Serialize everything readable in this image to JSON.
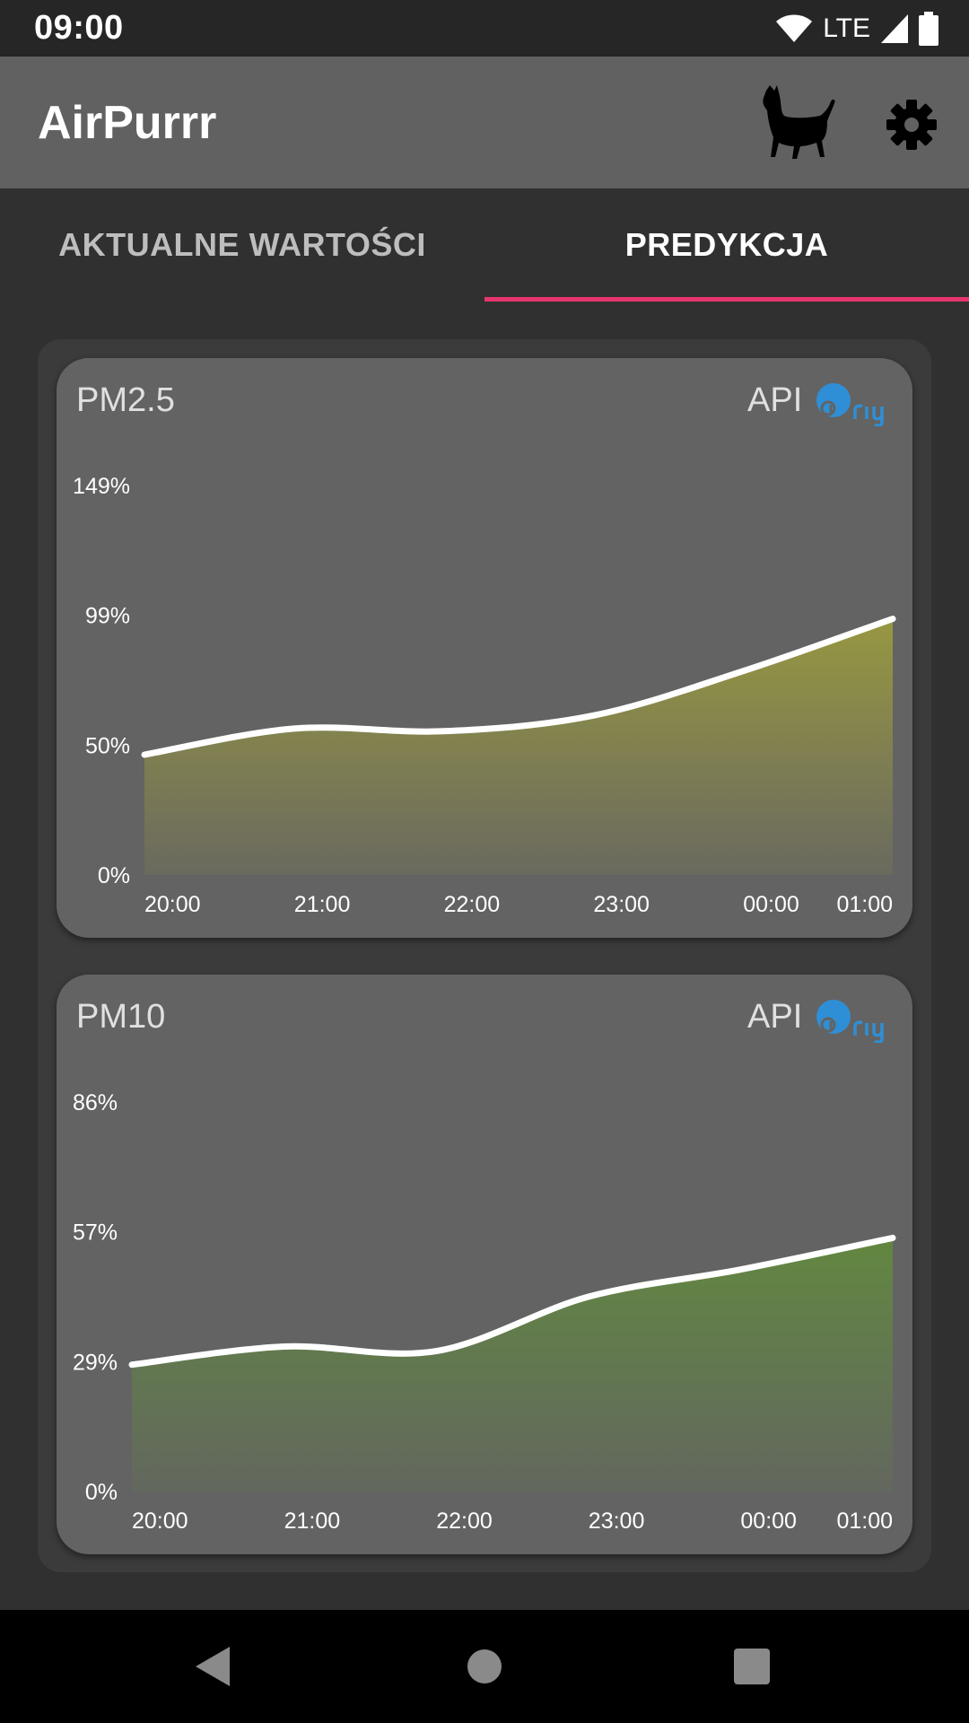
{
  "status_bar": {
    "time": "09:00",
    "network": "LTE",
    "icons": [
      "wifi-icon",
      "cell-signal-icon",
      "battery-icon"
    ]
  },
  "app_bar": {
    "title": "AirPurrr",
    "actions": [
      "cat-icon",
      "gear-icon"
    ]
  },
  "tabs": [
    {
      "label": "AKTUALNE WARTOŚCI",
      "active": false
    },
    {
      "label": "PREDYKCJA",
      "active": true
    }
  ],
  "colors": {
    "accent": "#e8356d",
    "pm25_fill": "#9a9a40",
    "pm10_fill": "#62893f",
    "airly_blue": "#2f8fd6"
  },
  "cards": [
    {
      "title": "PM2.5",
      "source_label": "API",
      "source_logo_text": "airly"
    },
    {
      "title": "PM10",
      "source_label": "API",
      "source_logo_text": "airly"
    }
  ],
  "chart_data": [
    {
      "type": "area",
      "title": "PM2.5",
      "x": [
        "20:00",
        "21:00",
        "22:00",
        "23:00",
        "00:00",
        "01:00"
      ],
      "y_ticks": [
        "149%",
        "99%",
        "50%",
        "0%"
      ],
      "ylim": [
        0,
        149
      ],
      "values": [
        46,
        56,
        55,
        61,
        78,
        98
      ],
      "grid": false
    },
    {
      "type": "area",
      "title": "PM10",
      "x": [
        "20:00",
        "21:00",
        "22:00",
        "23:00",
        "00:00",
        "01:00"
      ],
      "y_ticks": [
        "86%",
        "57%",
        "29%",
        "0%"
      ],
      "ylim": [
        0,
        86
      ],
      "values": [
        28,
        32,
        31,
        43,
        49,
        56
      ],
      "grid": false
    }
  ],
  "nav_bar": {
    "buttons": [
      "back-icon",
      "home-icon",
      "recents-icon"
    ]
  }
}
